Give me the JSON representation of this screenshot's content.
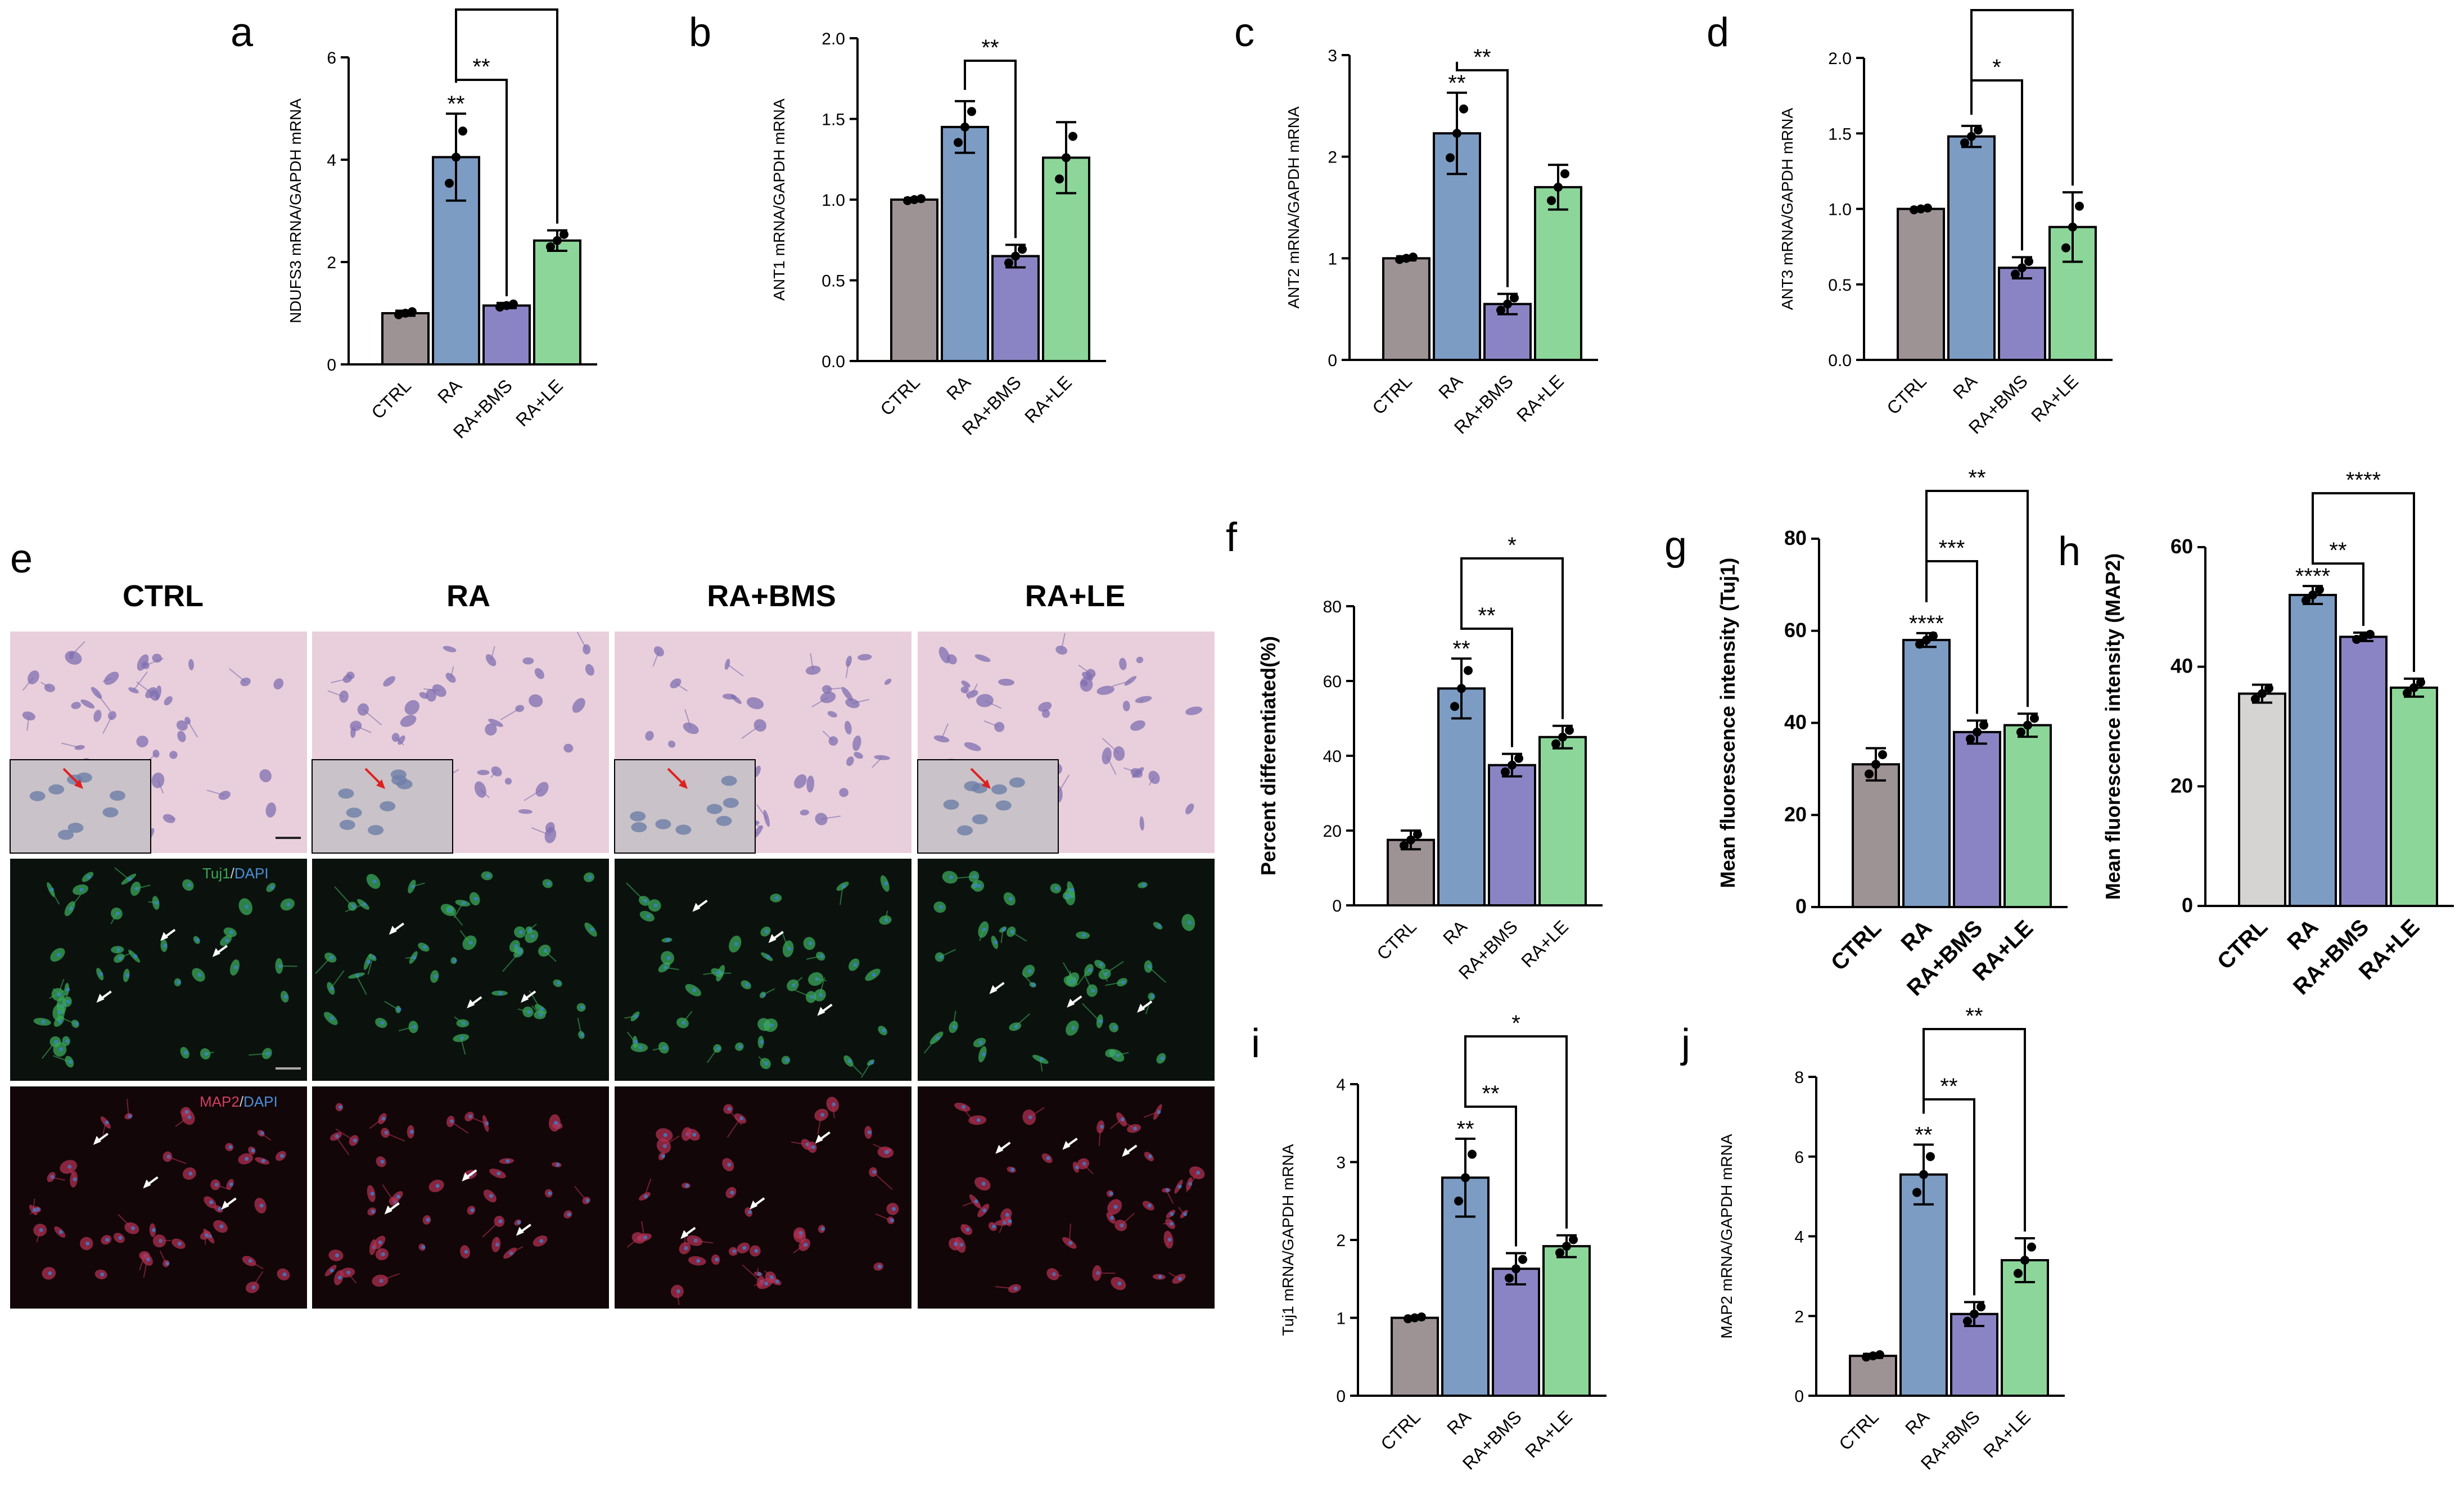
{
  "panel_letters": [
    "a",
    "b",
    "c",
    "d",
    "e",
    "f",
    "g",
    "h",
    "i",
    "j"
  ],
  "micrograph": {
    "column_headers": [
      "CTRL",
      "RA",
      "RA+BMS",
      "RA+LE"
    ],
    "row_labels": {
      "tuj1": {
        "marker": "Tuj1",
        "sep": "/",
        "dapi": "DAPI"
      },
      "map2": {
        "marker": "MAP2",
        "sep": "/",
        "dapi": "DAPI"
      }
    }
  },
  "colors": {
    "CTRL": "#9e9394",
    "RA": "#7d9cc4",
    "RA+BMS": "#8b84c4",
    "RA+LE": "#8dd69a",
    "CTRL_light": "#d6d3d3",
    "stain_bg": "#e9cfdb",
    "tuj1_green": "#3aa85a",
    "map2_red": "#b03050"
  },
  "chart_data": [
    {
      "panel": "a",
      "type": "bar",
      "categories": [
        "CTRL",
        "RA",
        "RA+BMS",
        "RA+LE"
      ],
      "values": [
        1.0,
        4.05,
        1.15,
        2.42
      ],
      "errors": [
        0.05,
        0.85,
        0.05,
        0.2
      ],
      "ylabel": "NDUFS3 mRNA/GAPDH mRNA",
      "ylim": [
        0,
        6
      ],
      "ticks": [
        0,
        2,
        4,
        6
      ],
      "tick_labels": [
        "0",
        "2",
        "4",
        "6"
      ],
      "sig": [
        {
          "over": 1,
          "text": "**"
        }
      ],
      "brackets": [
        {
          "from": 1,
          "to": 2,
          "text": "**"
        },
        {
          "from": 1,
          "to": 3,
          "text": "**"
        }
      ]
    },
    {
      "panel": "b",
      "type": "bar",
      "categories": [
        "CTRL",
        "RA",
        "RA+BMS",
        "RA+LE"
      ],
      "values": [
        1.0,
        1.45,
        0.65,
        1.26
      ],
      "errors": [
        0.01,
        0.16,
        0.07,
        0.22
      ],
      "ylabel": "ANT1 mRNA/GAPDH mRNA",
      "ylim": [
        0,
        2
      ],
      "ticks": [
        0,
        0.5,
        1,
        1.5,
        2
      ],
      "tick_labels": [
        "0.0",
        "0.5",
        "1.0",
        "1.5",
        "2.0"
      ],
      "sig": [],
      "brackets": [
        {
          "from": 1,
          "to": 2,
          "text": "**"
        }
      ]
    },
    {
      "panel": "c",
      "type": "bar",
      "categories": [
        "CTRL",
        "RA",
        "RA+BMS",
        "RA+LE"
      ],
      "values": [
        1.0,
        2.23,
        0.55,
        1.7
      ],
      "errors": [
        0.02,
        0.4,
        0.1,
        0.22
      ],
      "ylabel": "ANT2 mRNA/GAPDH mRNA",
      "ylim": [
        0,
        3
      ],
      "ticks": [
        0,
        1,
        2,
        3
      ],
      "tick_labels": [
        "0",
        "1",
        "2",
        "3"
      ],
      "sig": [
        {
          "over": 1,
          "text": "**"
        }
      ],
      "brackets": [
        {
          "from": 1,
          "to": 2,
          "text": "**"
        }
      ]
    },
    {
      "panel": "d",
      "type": "bar",
      "categories": [
        "CTRL",
        "RA",
        "RA+BMS",
        "RA+LE"
      ],
      "values": [
        1.0,
        1.48,
        0.61,
        0.88
      ],
      "errors": [
        0.01,
        0.07,
        0.07,
        0.23
      ],
      "ylabel": "ANT3 mRNA/GAPDH mRNA",
      "ylim": [
        0,
        2
      ],
      "ticks": [
        0,
        0.5,
        1,
        1.5,
        2
      ],
      "tick_labels": [
        "0.0",
        "0.5",
        "1.0",
        "1.5",
        "2.0"
      ],
      "sig": [],
      "brackets": [
        {
          "from": 1,
          "to": 2,
          "text": "*"
        },
        {
          "from": 1,
          "to": 3,
          "text": "**"
        }
      ]
    },
    {
      "panel": "f",
      "type": "bar",
      "categories": [
        "CTRL",
        "RA",
        "RA+BMS",
        "RA+LE"
      ],
      "values": [
        17.5,
        58,
        37.5,
        45
      ],
      "errors": [
        2.5,
        8,
        3,
        3
      ],
      "ylabel": "Percent differentiated(%)",
      "ylim": [
        0,
        80
      ],
      "ticks": [
        0,
        20,
        40,
        60,
        80
      ],
      "tick_labels": [
        "0",
        "20",
        "40",
        "60",
        "80"
      ],
      "sig": [
        {
          "over": 1,
          "text": "**"
        }
      ],
      "brackets": [
        {
          "from": 1,
          "to": 2,
          "text": "**"
        },
        {
          "from": 1,
          "to": 3,
          "text": "*"
        }
      ]
    },
    {
      "panel": "g",
      "type": "bar",
      "categories": [
        "CTRL",
        "RA",
        "RA+BMS",
        "RA+LE"
      ],
      "values": [
        31,
        58,
        38,
        39.5
      ],
      "errors": [
        3.5,
        1.5,
        2.5,
        2.5
      ],
      "ylabel": "Mean fluorescence intensity (Tuj1)",
      "ylim": [
        0,
        80
      ],
      "ticks": [
        0,
        20,
        40,
        60,
        80
      ],
      "tick_labels": [
        "0",
        "20",
        "40",
        "60",
        "80"
      ],
      "sig": [
        {
          "over": 1,
          "text": "****"
        }
      ],
      "brackets": [
        {
          "from": 1,
          "to": 2,
          "text": "***"
        },
        {
          "from": 1,
          "to": 3,
          "text": "**"
        }
      ]
    },
    {
      "panel": "h",
      "type": "bar",
      "categories": [
        "CTRL",
        "RA",
        "RA+BMS",
        "RA+LE"
      ],
      "values": [
        35.5,
        52,
        45,
        36.5
      ],
      "errors": [
        1.5,
        1.5,
        0.7,
        1.5
      ],
      "ylabel": "Mean fluorescence intensity (MAP2)",
      "ylim": [
        0,
        60
      ],
      "ticks": [
        0,
        20,
        40,
        60
      ],
      "tick_labels": [
        "0",
        "20",
        "40",
        "60"
      ],
      "sig": [
        {
          "over": 1,
          "text": "****"
        }
      ],
      "brackets": [
        {
          "from": 1,
          "to": 2,
          "text": "**"
        },
        {
          "from": 1,
          "to": 3,
          "text": "****"
        }
      ]
    },
    {
      "panel": "i",
      "type": "bar",
      "categories": [
        "CTRL",
        "RA",
        "RA+BMS",
        "RA+LE"
      ],
      "values": [
        1.0,
        2.8,
        1.63,
        1.92
      ],
      "errors": [
        0.02,
        0.5,
        0.2,
        0.14
      ],
      "ylabel": "Tuj1 mRNA/GAPDH mRNA",
      "ylim": [
        0,
        4
      ],
      "ticks": [
        0,
        1,
        2,
        3,
        4
      ],
      "tick_labels": [
        "0",
        "1",
        "2",
        "3",
        "4"
      ],
      "sig": [
        {
          "over": 1,
          "text": "**"
        }
      ],
      "brackets": [
        {
          "from": 1,
          "to": 2,
          "text": "**"
        },
        {
          "from": 1,
          "to": 3,
          "text": "*"
        }
      ]
    },
    {
      "panel": "j",
      "type": "bar",
      "categories": [
        "CTRL",
        "RA",
        "RA+BMS",
        "RA+LE"
      ],
      "values": [
        1.0,
        5.55,
        2.05,
        3.4
      ],
      "errors": [
        0.05,
        0.75,
        0.3,
        0.55
      ],
      "ylabel": "MAP2 mRNA/GAPDH mRNA",
      "ylim": [
        0,
        8
      ],
      "ticks": [
        0,
        2,
        4,
        6,
        8
      ],
      "tick_labels": [
        "0",
        "2",
        "4",
        "6",
        "8"
      ],
      "sig": [
        {
          "over": 1,
          "text": "**"
        }
      ],
      "brackets": [
        {
          "from": 1,
          "to": 2,
          "text": "**"
        },
        {
          "from": 1,
          "to": 3,
          "text": "**"
        }
      ]
    }
  ]
}
